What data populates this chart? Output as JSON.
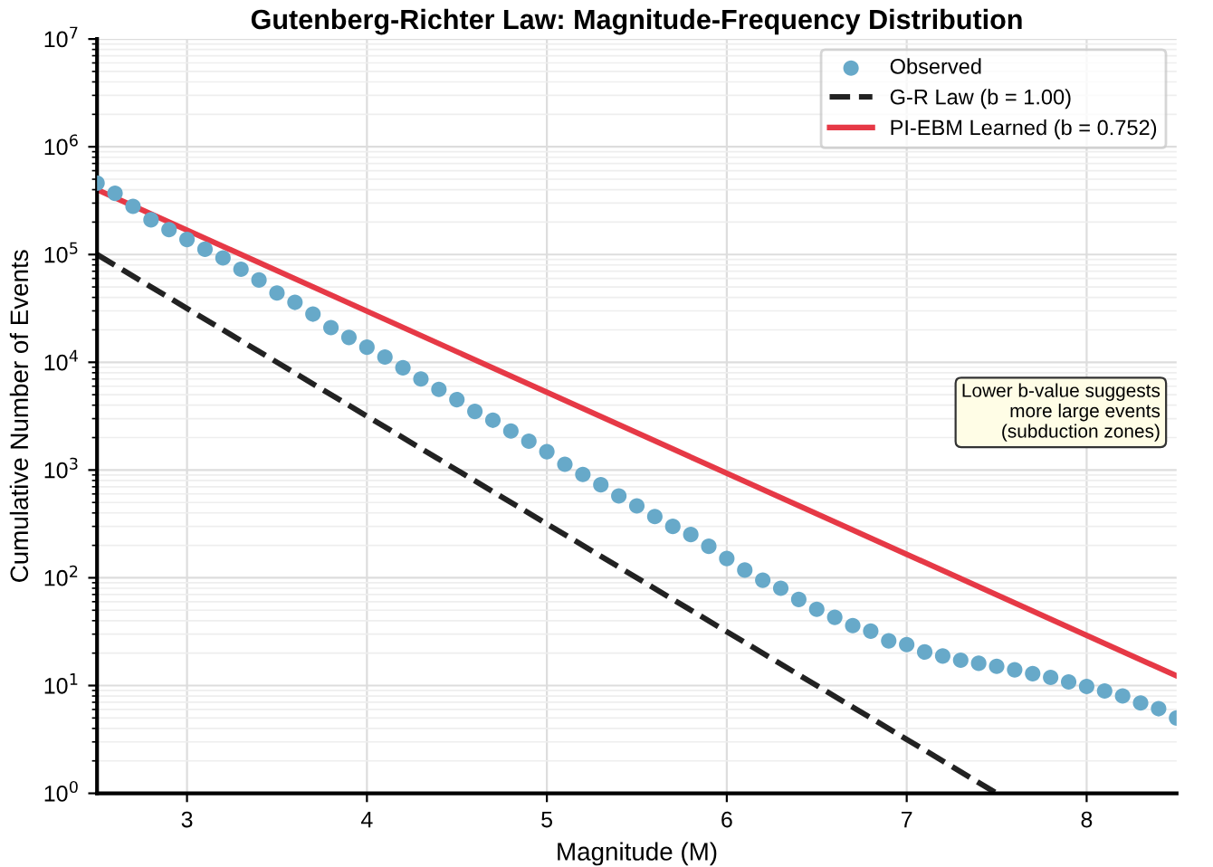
{
  "chart_data": {
    "type": "scatter",
    "title": "Gutenberg-Richter Law: Magnitude-Frequency Distribution",
    "xlabel": "Magnitude (M)",
    "ylabel": "Cumulative Number of Events",
    "log": "y",
    "xlim": [
      2.5,
      8.5
    ],
    "xticks": [
      3,
      4,
      5,
      6,
      7,
      8
    ],
    "ylim": [
      1,
      10000000
    ],
    "yticks": [
      {
        "value": 1,
        "label": "10$^{0}$"
      },
      {
        "value": 10,
        "label": "10$^{1}$"
      },
      {
        "value": 100,
        "label": "10$^{2}$"
      },
      {
        "value": 1000,
        "label": "10$^{3}$"
      },
      {
        "value": 10000,
        "label": "10$^{4}$"
      },
      {
        "value": 100000,
        "label": "10$^{5}$"
      },
      {
        "value": 1000000,
        "label": "10$^{6}$"
      },
      {
        "value": 10000000,
        "label": "10$^{7}$"
      }
    ],
    "grid": true,
    "legend": "top right",
    "annotations": [
      "Lower b-value suggests\nmore large events\n(subduction zones)"
    ],
    "series": [
      {
        "name": "Observed",
        "color": "#67a9c9",
        "marker": "circle",
        "x": [
          2.5,
          2.6,
          2.7,
          2.8,
          2.9,
          3.0,
          3.1,
          3.2,
          3.3,
          3.4,
          3.5,
          3.6,
          3.7,
          3.8,
          3.9,
          4.0,
          4.1,
          4.2,
          4.3,
          4.4,
          4.5,
          4.6,
          4.7,
          4.8,
          4.9,
          5.0,
          5.1,
          5.2,
          5.3,
          5.4,
          5.5,
          5.6,
          5.7,
          5.8,
          5.9,
          6.0,
          6.1,
          6.2,
          6.3,
          6.4,
          6.5,
          6.6,
          6.7,
          6.8,
          6.9,
          7.0,
          7.1,
          7.2,
          7.3,
          7.4,
          7.5,
          7.6,
          7.7,
          7.8,
          7.9,
          8.0,
          8.1,
          8.2,
          8.3,
          8.4,
          8.5
        ],
        "values": [
          460000,
          370000,
          280000,
          210000,
          170000,
          138000,
          112000,
          93000,
          73000,
          58000,
          44000,
          36000,
          28000,
          21000,
          17000,
          13800,
          11200,
          8900,
          7000,
          5600,
          4500,
          3500,
          2900,
          2300,
          1850,
          1480,
          1130,
          910,
          730,
          575,
          465,
          370,
          300,
          252,
          196,
          151,
          118,
          95,
          80,
          63,
          51,
          43,
          36,
          32,
          26,
          24,
          20.5,
          18.8,
          17.2,
          16.1,
          15.1,
          14.0,
          12.9,
          11.9,
          10.8,
          9.8,
          8.9,
          8.0,
          6.9,
          6.1,
          5.0
        ]
      },
      {
        "name": "G-R Law (b = 1.00)",
        "type": "line",
        "color": "#222222",
        "line_style": "dashed",
        "marker": "none",
        "x": [
          2.5,
          7.5
        ],
        "values": [
          100000,
          1
        ]
      },
      {
        "name": "PI-EBM Learned (b = 0.752)",
        "type": "line",
        "color": "#e63946",
        "line_style": "solid",
        "marker": "none",
        "x": [
          2.5,
          8.5
        ],
        "values": [
          400000,
          12.3
        ]
      }
    ]
  }
}
